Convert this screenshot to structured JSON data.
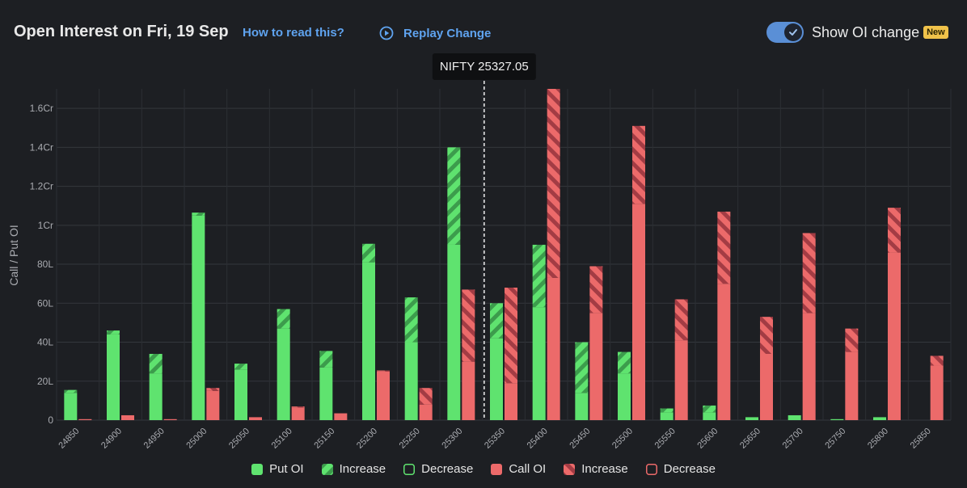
{
  "header": {
    "title": "Open Interest on Fri, 19 Sep",
    "how_link": "How to read this?",
    "replay_label": "Replay Change",
    "toggle_label": "Show OI change",
    "toggle_on": true,
    "badge": "New"
  },
  "chart_data": {
    "type": "bar",
    "ylabel": "Call / Put OI",
    "y_ticks": [
      "0",
      "20L",
      "40L",
      "60L",
      "80L",
      "1Cr",
      "1.2Cr",
      "1.4Cr",
      "1.6Cr"
    ],
    "ylim": [
      0,
      170
    ],
    "unit": "lakh",
    "spot_label": "NIFTY 25327.05",
    "spot_value": 25327.05,
    "categories": [
      "24850",
      "24900",
      "24950",
      "25000",
      "25050",
      "25100",
      "25150",
      "25200",
      "25250",
      "25300",
      "25350",
      "25400",
      "25450",
      "25500",
      "25550",
      "25600",
      "25650",
      "25700",
      "25750",
      "25800",
      "25850"
    ],
    "put_oi": [
      14,
      44,
      24,
      105,
      26,
      47,
      27,
      81,
      40,
      90,
      42,
      58,
      14,
      24,
      4,
      4,
      1.5,
      2.5,
      0.5,
      1.5,
      0
    ],
    "put_change": [
      1.5,
      2,
      10,
      1.5,
      3,
      10,
      8.5,
      9.5,
      23,
      50,
      18,
      32,
      26,
      11,
      2,
      3.5,
      0,
      0,
      0,
      0,
      0
    ],
    "call_oi": [
      0.5,
      2.5,
      0.5,
      15,
      1.5,
      6.5,
      3.5,
      25,
      8,
      30,
      19,
      73,
      55,
      111,
      41,
      70,
      34,
      55,
      35,
      86,
      28
    ],
    "call_change": [
      0,
      0,
      0,
      1.5,
      0,
      0.5,
      0,
      0.5,
      8.5,
      37,
      49,
      97,
      24,
      40,
      21,
      37,
      19,
      41,
      12,
      23,
      5
    ],
    "legend": {
      "put_oi": "Put OI",
      "put_increase": "Increase",
      "put_decrease": "Decrease",
      "call_oi": "Call OI",
      "call_increase": "Increase",
      "call_decrease": "Decrease"
    },
    "colors": {
      "put": "#5fe36f",
      "call": "#ec6a6a",
      "background": "#1d1f23",
      "grid": "#34373c"
    }
  }
}
